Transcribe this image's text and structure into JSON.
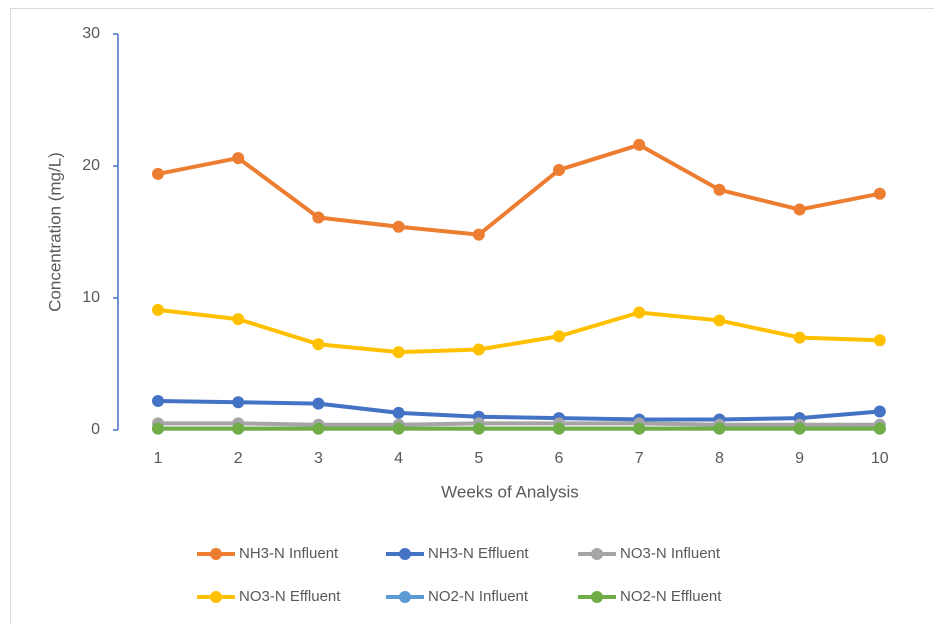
{
  "chart_data": {
    "type": "line",
    "xlabel": "Weeks of Analysis",
    "ylabel": "Concentration (mg/L)",
    "categories": [
      "1",
      "2",
      "3",
      "4",
      "5",
      "6",
      "7",
      "8",
      "9",
      "10"
    ],
    "ylim": [
      0,
      30
    ],
    "yticks": [
      0,
      10,
      20,
      30
    ],
    "grid": false,
    "series": [
      {
        "name": "NH3-N Influent",
        "color": "#ed7d31",
        "values": [
          19.4,
          20.6,
          16.1,
          15.4,
          14.8,
          19.7,
          21.6,
          18.2,
          16.7,
          17.9
        ]
      },
      {
        "name": "NH3-N Effluent",
        "color": "#4472c4",
        "values": [
          2.2,
          2.1,
          2.0,
          1.3,
          1.0,
          0.9,
          0.8,
          0.8,
          0.9,
          1.4
        ]
      },
      {
        "name": "NO3-N Influent",
        "color": "#a5a5a5",
        "values": [
          0.5,
          0.5,
          0.4,
          0.4,
          0.5,
          0.5,
          0.5,
          0.4,
          0.4,
          0.4
        ]
      },
      {
        "name": "NO3-N Effluent",
        "color": "#ffc000",
        "values": [
          9.1,
          8.4,
          6.5,
          5.9,
          6.1,
          7.1,
          8.9,
          8.3,
          7.0,
          6.8
        ]
      },
      {
        "name": "NO2-N Influent",
        "color": "#5b9bd5",
        "values": [
          0.1,
          0.1,
          0.1,
          0.1,
          0.1,
          0.1,
          0.1,
          0.1,
          0.1,
          0.1
        ]
      },
      {
        "name": "NO2-N Effluent",
        "color": "#70ad47",
        "values": [
          0.1,
          0.1,
          0.1,
          0.1,
          0.1,
          0.1,
          0.1,
          0.1,
          0.1,
          0.1
        ]
      }
    ]
  }
}
